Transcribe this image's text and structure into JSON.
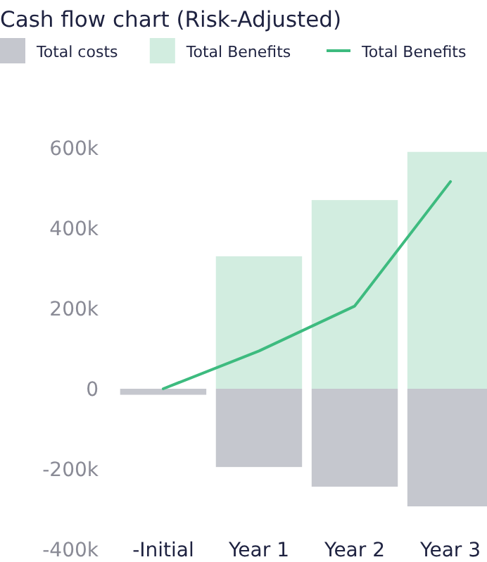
{
  "chart_data": {
    "type": "bar",
    "title": "Cash flow chart (Risk-Adjusted)",
    "categories": [
      "-Initial",
      "Year 1",
      "Year 2",
      "Year 3"
    ],
    "series": [
      {
        "name": "Total costs",
        "color": "#c5c7ce",
        "values": [
          -15000,
          -195000,
          -244000,
          -293000
        ]
      },
      {
        "name": "Total Benefits",
        "color": "#d2ede0",
        "values": [
          0,
          330000,
          470000,
          590000
        ]
      },
      {
        "name": "Total Benefits",
        "type": "line",
        "color": "#3dbb7f",
        "values": [
          0,
          94000,
          206000,
          516000
        ]
      }
    ],
    "stacked": true,
    "ylim": [
      -400000,
      600000
    ],
    "yticks": [
      {
        "value": -400000,
        "label": "-400k"
      },
      {
        "value": -200000,
        "label": "-200k"
      },
      0,
      {
        "value": 200000,
        "label": "200k"
      },
      {
        "value": 400000,
        "label": "400k"
      },
      {
        "value": 600000,
        "label": "600k"
      }
    ],
    "grid": false,
    "legend": "top left",
    "marker": "none",
    "line_style": "solid"
  }
}
